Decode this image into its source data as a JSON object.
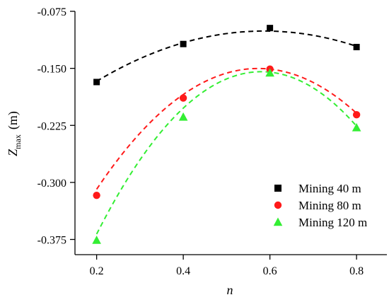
{
  "chart_data": {
    "type": "scatter",
    "xlabel": "n",
    "ylabel": "Z_max (m)",
    "ylabel_parts": {
      "main": "Z",
      "subscript": "max",
      "unit": "(m)"
    },
    "xlim": [
      0.15,
      0.87
    ],
    "ylim": [
      -0.395,
      -0.075
    ],
    "xticks": [
      0.2,
      0.4,
      0.6,
      0.8
    ],
    "xtick_labels": [
      "0.2",
      "0.4",
      "0.6",
      "0.8"
    ],
    "yticks": [
      -0.075,
      -0.15,
      -0.225,
      -0.3,
      -0.375
    ],
    "ytick_labels": [
      "-0.075",
      "-0.150",
      "-0.225",
      "-0.300",
      "-0.375"
    ],
    "grid": false,
    "legend_position": "lower-right",
    "series": [
      {
        "name": "Mining 40 m",
        "marker": "square",
        "color": "#000000",
        "x": [
          0.2,
          0.4,
          0.6,
          0.8
        ],
        "y": [
          -0.168,
          -0.118,
          -0.097,
          -0.122
        ],
        "trend": [
          -0.167,
          -0.12,
          -0.101,
          -0.121
        ]
      },
      {
        "name": "Mining 80 m",
        "marker": "circle",
        "color": "#ff1a1a",
        "x": [
          0.2,
          0.4,
          0.6,
          0.8
        ],
        "y": [
          -0.317,
          -0.189,
          -0.151,
          -0.211
        ],
        "trend": [
          -0.309,
          -0.198,
          -0.151,
          -0.209
        ]
      },
      {
        "name": "Mining 120 m",
        "marker": "triangle",
        "color": "#33ee33",
        "x": [
          0.2,
          0.4,
          0.6,
          0.8
        ],
        "y": [
          -0.376,
          -0.214,
          -0.156,
          -0.228
        ],
        "trend": [
          -0.368,
          -0.226,
          -0.155,
          -0.226
        ]
      }
    ]
  }
}
